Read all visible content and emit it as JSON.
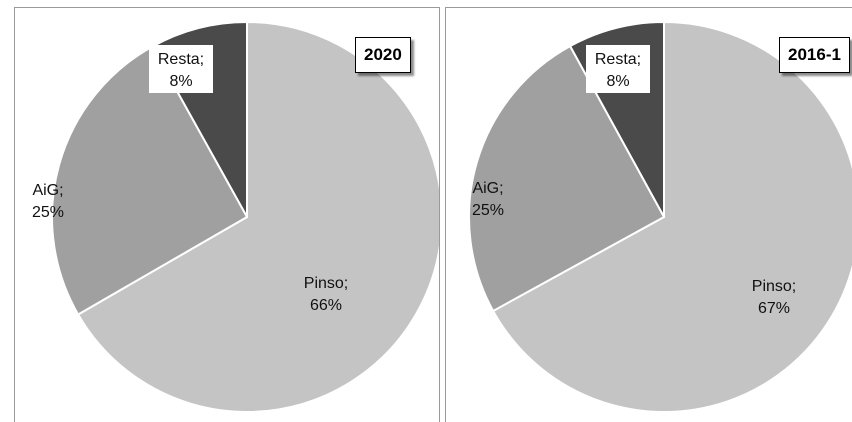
{
  "chart_data": [
    {
      "type": "pie",
      "title": "2020",
      "slices": [
        {
          "label": "Resta",
          "value": 8,
          "text": "8%",
          "color": "#4a4a4a"
        },
        {
          "label": "Pinso",
          "value": 66,
          "text": "66%",
          "color": "#c4c4c4"
        },
        {
          "label": "AiG",
          "value": 25,
          "text": "25%",
          "color": "#a0a0a0"
        }
      ]
    },
    {
      "type": "pie",
      "title": "2016-1",
      "slices": [
        {
          "label": "Resta",
          "value": 8,
          "text": "8%",
          "color": "#4a4a4a"
        },
        {
          "label": "Pinso",
          "value": 67,
          "text": "67%",
          "color": "#c4c4c4"
        },
        {
          "label": "AiG",
          "value": 25,
          "text": "25%",
          "color": "#a0a0a0"
        }
      ]
    }
  ]
}
